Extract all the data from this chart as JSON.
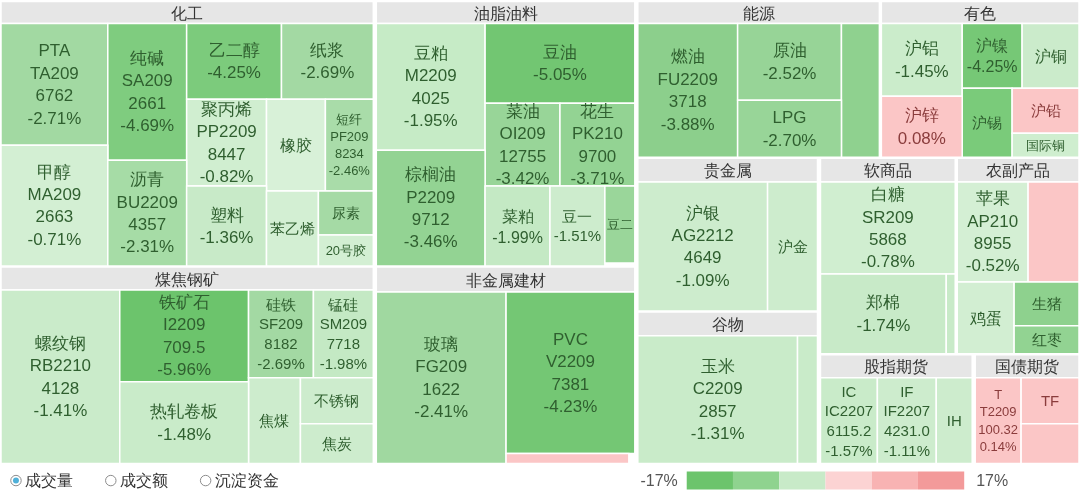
{
  "chart_data": [
    {
      "type": "other",
      "categories": [
        "化工",
        "PTA\nTA209\n6762",
        "纯碱\nSA209\n2661",
        "乙二醇",
        "纸浆",
        "聚丙烯\nPP2209\n8447",
        "橡胶",
        "短纤\nPF209\n8234",
        "甲醇\nMA209\n2663",
        "沥青\nBU2209\n4357",
        "塑料",
        "苯乙烯",
        "尿素",
        "20号胶",
        "油脂油料",
        "豆粕\nM2209\n4025",
        "豆油",
        "菜油\nOI209\n12755",
        "花生\nPK210\n9700",
        "棕榈油\nP2209\n9712",
        "菜粕",
        "豆一",
        "豆二",
        "能源",
        "燃油\nFU2209\n3718",
        "原油",
        null,
        "LPG",
        "有色",
        "沪铝",
        "沪镍",
        "沪铜",
        "沪锡",
        "沪铅",
        "沪锌",
        "国际铜",
        "贵金属",
        "沪银\nAG2212\n4649",
        "沪金",
        "软商品",
        "白糖\nSR209\n5868",
        "郑棉",
        null,
        "农副产品",
        "苹果\nAP210\n8955",
        null,
        "鸡蛋",
        "生猪",
        "红枣",
        "煤焦钢矿",
        "螺纹钢\nRB2210\n4128",
        "铁矿石\nI2209\n709.5",
        "硅铁\nSF209\n8182",
        "锰硅\nSM209\n7718",
        "焦煤",
        "不锈钢",
        "热轧卷板",
        "焦炭",
        "非金属建材",
        "玻璃\nFG209\n1622",
        "PVC\nV2209\n7381",
        null,
        "谷物",
        "玉米\nC2209\n2857",
        null,
        "股指期货",
        "IC\nIC2207\n6115.2",
        "IF\nIF2207\n4231.0",
        "IH",
        "国债期货",
        "T\nT2209\n100.32",
        "TF",
        null
      ],
      "values": [
        null,
        -2.71,
        -4.69,
        -4.25,
        -2.69,
        -0.82,
        null,
        -2.46,
        -0.71,
        -2.31,
        -1.36,
        null,
        null,
        null,
        null,
        -1.95,
        -5.05,
        -3.42,
        -3.71,
        -3.46,
        -1.99,
        -1.51,
        null,
        null,
        -3.88,
        -2.52,
        null,
        -2.7,
        null,
        -1.45,
        -4.25,
        null,
        null,
        null,
        0.08,
        null,
        null,
        -1.09,
        null,
        null,
        -0.78,
        -1.74,
        null,
        null,
        -0.52,
        null,
        null,
        null,
        null,
        null,
        -1.41,
        -5.96,
        -2.69,
        -1.98,
        null,
        null,
        -1.48,
        null,
        null,
        -2.41,
        -4.23,
        null,
        null,
        -1.31,
        null,
        null,
        -1.57,
        -1.11,
        null,
        null,
        0.14,
        null,
        null
      ],
      "value_labels": [
        null,
        "-2.71%",
        "-4.69%",
        "-4.25%",
        "-2.69%",
        "-0.82%",
        null,
        "-2.46%",
        "-0.71%",
        "-2.31%",
        "-1.36%",
        null,
        null,
        null,
        null,
        "-1.95%",
        "-5.05%",
        "-3.42%",
        "-3.71%",
        "-3.46%",
        "-1.99%",
        "-1.51%",
        null,
        null,
        "-3.88%",
        "-2.52%",
        null,
        "-2.70%",
        null,
        "-1.45%",
        "-4.25%",
        null,
        null,
        null,
        "0.08%",
        null,
        null,
        "-1.09%",
        null,
        null,
        "-0.78%",
        "-1.74%",
        null,
        null,
        "-0.52%",
        null,
        null,
        null,
        null,
        null,
        "-1.41%",
        "-5.96%",
        "-2.69%",
        "-1.98%",
        null,
        null,
        "-1.48%",
        null,
        null,
        "-2.41%",
        "-4.23%",
        null,
        null,
        "-1.31%",
        null,
        null,
        "-1.57%",
        "-1.11%",
        null,
        null,
        "0.14%",
        null,
        null
      ],
      "colors": [
        "#e6e6e6",
        "#a2d9a2",
        "#7fcc7f",
        "#7ccb7c",
        "#a3d9a3",
        "#d0eed0",
        "#d8f1d8",
        "#a9dca9",
        "#d3efd3",
        "#a6dca6",
        "#c8eac8",
        "#d3efd3",
        "#a5daa5",
        "#d3efd3",
        "#e6e6e6",
        "#c6ebc6",
        "#72c672",
        "#98d598",
        "#93d393",
        "#93d393",
        "#c4e9c4",
        "#cdeccd",
        "#9ad69a",
        "#e6e6e6",
        "#8ccf8c",
        "#97d497",
        "#8fd18f",
        "#98d598",
        "#e6e6e6",
        "#cbeccb",
        "#76c876",
        "#cbebcb",
        "#7acb7a",
        "#fbc6c6",
        "#fbc6c6",
        "#cfeecf",
        "#e6e6e6",
        "#cdeccd",
        "#cdeccd",
        "#e6e6e6",
        "#d0eed0",
        "#c8eac8",
        "#c8eac8",
        "#e6e6e6",
        "#d4efd4",
        "#fbc6c6",
        "#d2eed2",
        "#8ed18e",
        "#92d392",
        "#e6e6e6",
        "#caebca",
        "#6cc46c",
        "#a3d9a3",
        "#c4e9c4",
        "#cdeccd",
        "#cdeccd",
        "#c9ebc9",
        "#cdeccd",
        "#e6e6e6",
        "#a0d8a0",
        "#74c774",
        "#fbc6c6",
        "#e6e6e6",
        "#c9ebc9",
        "#c9ebc9",
        "#e6e6e6",
        "#c9ebc9",
        "#cdeccd",
        "#cdeccd",
        "#e6e6e6",
        "#fbc6c6",
        "#fbc6c6",
        "#fbc6c6"
      ]
    },
    {
      "type": "other",
      "annotations": [
        "成交量",
        "成交额",
        "沉淀资金"
      ]
    },
    {
      "type": "other",
      "annotations": [
        "-17%",
        "17%"
      ],
      "colors": [
        "#6cc46c",
        "#8fd38f",
        "#c8eac8",
        "#fcd3d3",
        "#f8b3b3",
        "#f39a9a"
      ]
    }
  ]
}
